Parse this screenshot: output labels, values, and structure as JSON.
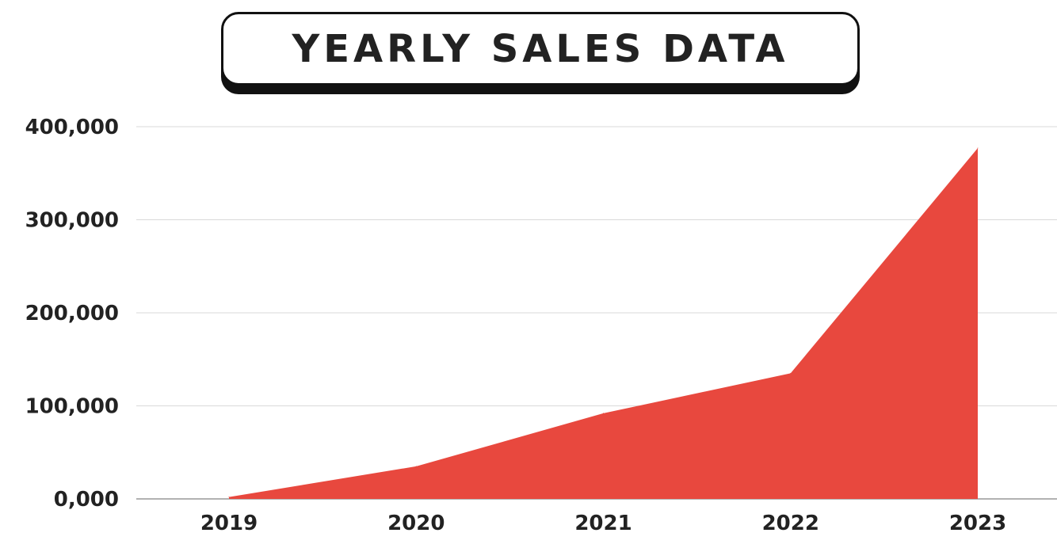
{
  "title": "YEARLY SALES DATA",
  "colors": {
    "area": "#e8483e",
    "grid": "#d9d9d9",
    "axis": "#999999",
    "text": "#222222"
  },
  "chart_data": {
    "type": "area",
    "title": "YEARLY SALES DATA",
    "xlabel": "",
    "ylabel": "",
    "categories": [
      "2019",
      "2020",
      "2021",
      "2022",
      "2023"
    ],
    "values": [
      2000,
      35000,
      92000,
      135000,
      377000
    ],
    "ylim": [
      0,
      400000
    ],
    "yticks": [
      0,
      100000,
      200000,
      300000,
      400000
    ],
    "ytick_labels": [
      "0,000",
      "100,000",
      "200,000",
      "300,000",
      "400,000"
    ],
    "grid": true,
    "legend": "none"
  }
}
